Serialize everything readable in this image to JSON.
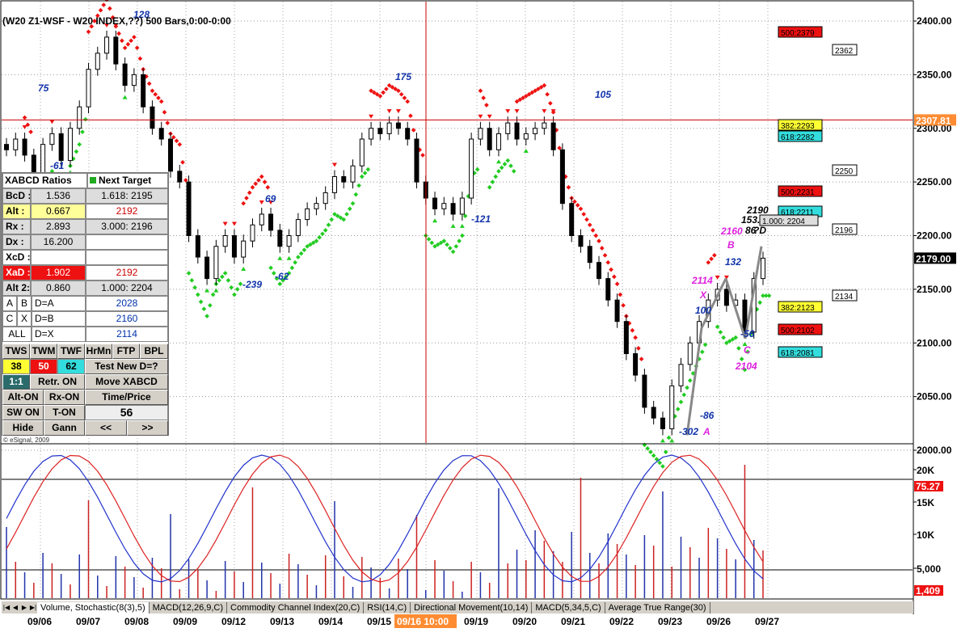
{
  "title": "(W20 Z1-WSF - W20 INDEX,??) 500 Bars,0:00-0:00",
  "copyright": "© eSignal, 2009",
  "price_axis": {
    "ticks": [
      "2400.00",
      "2350.00",
      "2300.00",
      "2250.00",
      "2200.00",
      "2150.00",
      "2100.00",
      "2050.00",
      "2000.00"
    ],
    "current_line_label": "2307.81",
    "last_price_label": "2179.00"
  },
  "dates": [
    "09/06",
    "09/07",
    "09/08",
    "09/09",
    "09/12",
    "09/13",
    "09/14",
    "09/15",
    "09/16 10:00",
    "09/19",
    "09/20",
    "09/21",
    "09/22",
    "09/23",
    "09/26",
    "09/27"
  ],
  "swing_labels": [
    "128",
    "75",
    "-61",
    "175",
    "69",
    "-239",
    "-62",
    "-121",
    "105",
    "132",
    "100",
    "-302",
    "-86",
    "-56",
    "2114",
    "X",
    "2160",
    "B",
    "2104",
    "C",
    "A",
    "2190",
    "153.1",
    "86",
    "?D"
  ],
  "fib_levels": [
    {
      "label": "500:2379",
      "color": "#ee1111"
    },
    {
      "label": "2362",
      "color": "#ffffff"
    },
    {
      "label": "382:2293",
      "color": "#ffff33"
    },
    {
      "label": "618:2282",
      "color": "#33dddd"
    },
    {
      "label": "2250",
      "color": "#ffffff"
    },
    {
      "label": "500:2231",
      "color": "#ee1111"
    },
    {
      "label": "618:2211",
      "color": "#33dddd"
    },
    {
      "label": "1.000: 2204",
      "color": "#dddddd"
    },
    {
      "label": "2196",
      "color": "#ffffff"
    },
    {
      "label": "2134",
      "color": "#ffffff"
    },
    {
      "label": "382:2123",
      "color": "#ffff33"
    },
    {
      "label": "500:2102",
      "color": "#ee1111"
    },
    {
      "label": "618:2081",
      "color": "#33dddd"
    }
  ],
  "indicator_axis": {
    "ticks": [
      "20K",
      "15K",
      "10K",
      "5,000"
    ],
    "stoch_label": "75.27",
    "volume_label": "1,409"
  },
  "panel": {
    "header": {
      "left": "XABCD Ratios",
      "right": "Next Target"
    },
    "rows": [
      {
        "label": "BcD :",
        "value": "1.536",
        "target": "1.618: 2195"
      },
      {
        "label": "Alt :",
        "value": "0.667",
        "target": "2192"
      },
      {
        "label": "Rx :",
        "value": "2.893",
        "target": "3.000: 2196"
      },
      {
        "label": "Dx :",
        "value": "16.200",
        "target": ""
      },
      {
        "label": "XcD :",
        "value": "",
        "target": ""
      },
      {
        "label": "XaD :",
        "value": "1.902",
        "target": "2192"
      },
      {
        "label": "Alt 2:",
        "value": "0.860",
        "target": "1.000: 2204"
      }
    ],
    "pairs": [
      {
        "a": "A",
        "b": "B",
        "eq": "D=A",
        "val": "2028"
      },
      {
        "a": "C",
        "b": "X",
        "eq": "D=B",
        "val": "2160"
      },
      {
        "a": "ALL",
        "b": "",
        "eq": "D=X",
        "val": "2114"
      }
    ],
    "tf_buttons": [
      "TWS",
      "TWM",
      "TWF",
      "HrMn",
      "FTP",
      "BPL"
    ],
    "tf_values": [
      "38",
      "50",
      "62"
    ],
    "test_label": "Test New D=?",
    "ratio_label": "1:1",
    "retr_label": "Retr. ON",
    "move_label": "Move XABCD",
    "alt_on": "Alt-ON",
    "rx_on": "Rx-ON",
    "time_price": "Time/Price",
    "sw_on": "SW ON",
    "t_on": "T-ON",
    "time_value": "56",
    "hide": "Hide",
    "gann": "Gann",
    "prev": "<<",
    "next": ">>"
  },
  "tabs": [
    "Volume, Stochastic(8(3),5)",
    "MACD(12,26,9,C)",
    "Commodity Channel Index(20,C)",
    "RSI(14,C)",
    "Directional Movement(10,14)",
    "MACD(5,34,5,C)",
    "Average True Range(30)"
  ],
  "chart_data": {
    "type": "candlestick",
    "title": "(W20 Z1-WSF - W20 INDEX,??) 500 Bars,0:00-0:00",
    "ylim": [
      1990,
      2410
    ],
    "x_labels": [
      "09/06",
      "09/07",
      "09/08",
      "09/09",
      "09/12",
      "09/13",
      "09/14",
      "09/15",
      "09/16",
      "09/19",
      "09/20",
      "09/21",
      "09/22",
      "09/23",
      "09/26",
      "09/27"
    ],
    "closes": [
      2280,
      2290,
      2275,
      2255,
      2285,
      2295,
      2270,
      2300,
      2320,
      2355,
      2370,
      2385,
      2360,
      2340,
      2350,
      2320,
      2300,
      2290,
      2260,
      2250,
      2200,
      2180,
      2160,
      2190,
      2200,
      2180,
      2195,
      2210,
      2220,
      2205,
      2190,
      2200,
      2215,
      2225,
      2230,
      2240,
      2255,
      2250,
      2265,
      2290,
      2300,
      2295,
      2305,
      2300,
      2290,
      2250,
      2235,
      2225,
      2230,
      2220,
      2235,
      2290,
      2300,
      2280,
      2295,
      2305,
      2290,
      2295,
      2300,
      2305,
      2280,
      2230,
      2200,
      2190,
      2175,
      2160,
      2140,
      2120,
      2090,
      2070,
      2040,
      2030,
      2020,
      2060,
      2080,
      2100,
      2120,
      2140,
      2150,
      2135,
      2140,
      2110,
      2160,
      2179
    ],
    "volume_label": "1,409",
    "stochastic_label": "75.27"
  }
}
